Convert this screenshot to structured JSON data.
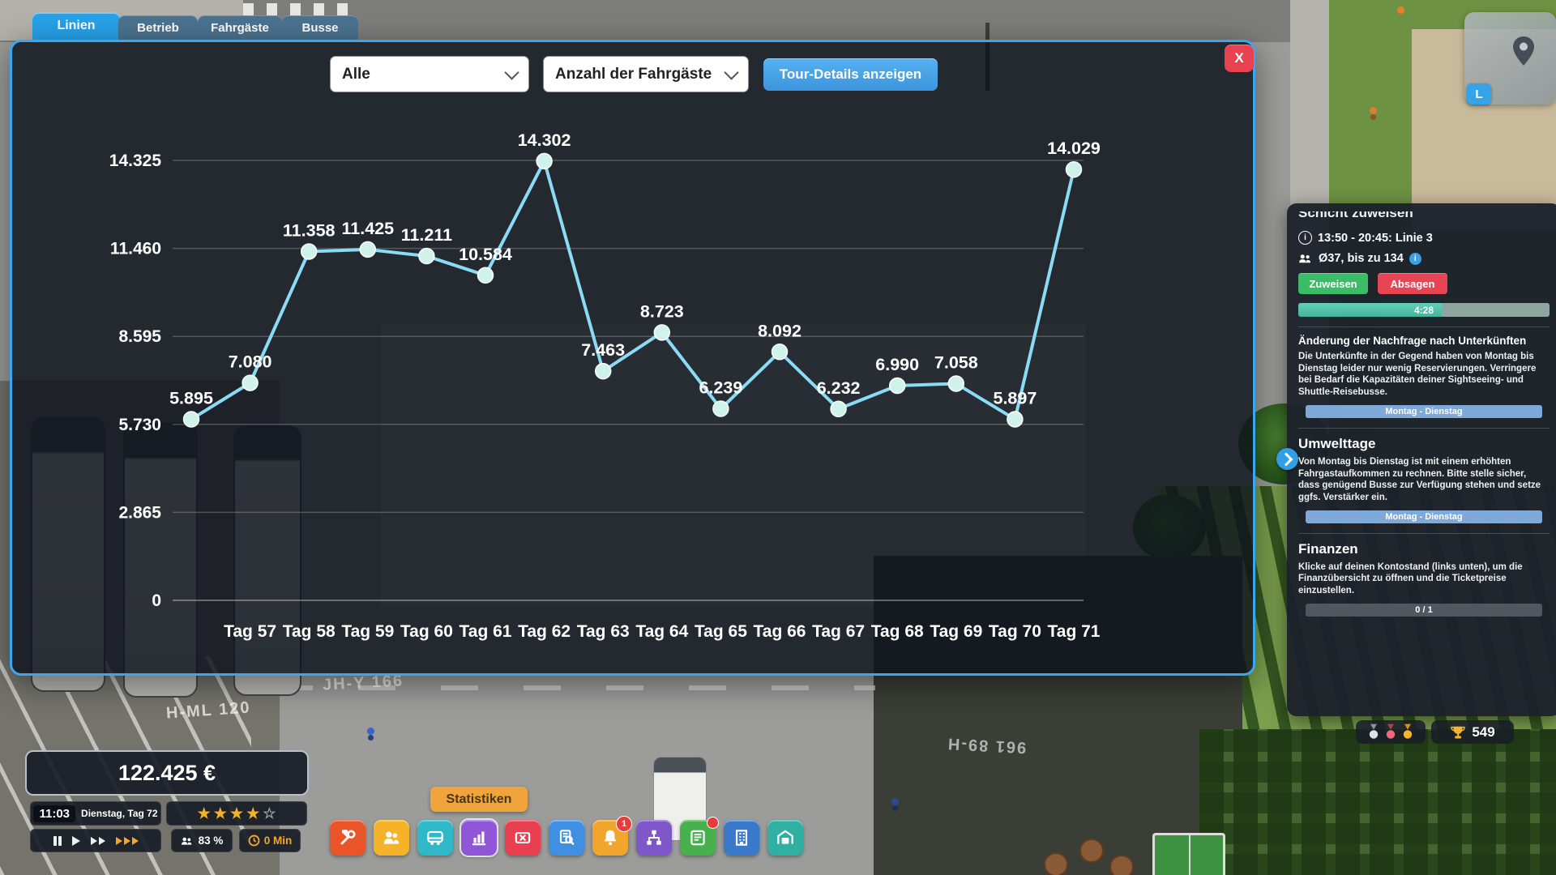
{
  "tabs": [
    {
      "label": "Linien",
      "active": true
    },
    {
      "label": "Betrieb",
      "active": false
    },
    {
      "label": "Fahrgäste",
      "active": false
    },
    {
      "label": "Busse",
      "active": false
    }
  ],
  "stats_panel": {
    "filter_value": "Alle",
    "metric_value": "Anzahl der Fahrgäste",
    "tour_details_label": "Tour-Details anzeigen",
    "close_label": "X"
  },
  "chart_data": {
    "type": "line",
    "title": "",
    "x_tick_labels": [
      "Tag 57",
      "Tag 58",
      "Tag 59",
      "Tag 60",
      "Tag 61",
      "Tag 62",
      "Tag 63",
      "Tag 64",
      "Tag 65",
      "Tag 66",
      "Tag 67",
      "Tag 68",
      "Tag 69",
      "Tag 70",
      "Tag 71"
    ],
    "values": [
      5895,
      7080,
      11358,
      11425,
      11211,
      10584,
      14302,
      7463,
      8723,
      6239,
      8092,
      6232,
      6990,
      7058,
      5897,
      14029
    ],
    "point_labels": [
      "5.895",
      "7.080",
      "11.358",
      "11.425",
      "11.211",
      "10.584",
      "14.302",
      "7.463",
      "8.723",
      "6.239",
      "8.092",
      "6.232",
      "6.990",
      "7.058",
      "5.897",
      "14.029"
    ],
    "first_point_unlabeled": true,
    "y_tick_labels": [
      "14.325",
      "11.460",
      "8.595",
      "5.730",
      "2.865",
      "0"
    ],
    "y_tick_values": [
      14325,
      11460,
      8595,
      5730,
      2865,
      0
    ],
    "ylim": [
      0,
      15600
    ],
    "grid": true,
    "legend": "none",
    "line_color": "#8adcf6",
    "point_color": "#cff3ea"
  },
  "side_panel": {
    "title": "Schicht zuweisen",
    "shift_time": "13:50 - 20:45: Linie 3",
    "shift_capacity": "Ø37, bis zu 134",
    "assign_label": "Zuweisen",
    "decline_label": "Absagen",
    "countdown": "4:28",
    "notices": [
      {
        "title": "Änderung der Nachfrage nach Unterkünften",
        "body": "Die Unterkünfte in der Gegend haben von Montag bis Dienstag leider nur wenig Reservierungen. Verringere bei Bedarf die Kapazitäten deiner Sightseeing- und Shuttle-Reisebusse.",
        "tag": "Montag - Dienstag"
      },
      {
        "title": "Umwelttage",
        "body": "Von Montag bis Dienstag ist mit einem erhöhten Fahrgastaufkommen zu rechnen. Bitte stelle sicher, dass genügend Busse zur Verfügung stehen und setze ggfs. Verstärker ein.",
        "tag": "Montag - Dienstag"
      },
      {
        "title": "Finanzen",
        "body": "Klicke auf deinen Kontostand (links unten), um die Finanzübersicht zu öffnen und die Ticketpreise einzustellen.",
        "tag": "0 / 1"
      }
    ]
  },
  "hud": {
    "money": "122.425 €",
    "clock": "11:03",
    "date": "Dienstag, Tag 72",
    "stars_filled": "★★★★",
    "star_empty": "☆",
    "occupancy": "83 %",
    "delay": "0 Min"
  },
  "toolbar": {
    "tooltip": "Statistiken",
    "bell_badge": "1",
    "items": [
      {
        "name": "maintenance-icon",
        "color": "#ea5429"
      },
      {
        "name": "staff-icon",
        "color": "#f4b32a"
      },
      {
        "name": "bus-fleet-icon",
        "color": "#2fb9c8"
      },
      {
        "name": "statistics-icon",
        "color": "#8f56d8"
      },
      {
        "name": "tickets-icon",
        "color": "#e84050"
      },
      {
        "name": "inspection-icon",
        "color": "#3f8fe2"
      },
      {
        "name": "notifications-icon",
        "color": "#f2a52c"
      },
      {
        "name": "route-network-icon",
        "color": "#7e57c8"
      },
      {
        "name": "finances-icon",
        "color": "#47b14e"
      },
      {
        "name": "city-buildings-icon",
        "color": "#3a78c9"
      },
      {
        "name": "depot-icon",
        "color": "#2fb0a2"
      }
    ]
  },
  "achievements": {
    "trophy_count": "549"
  },
  "minimap": {
    "shortcut_label": "L"
  },
  "scene": {
    "road_labels": [
      "H-ML 120",
      "JH-Y 166",
      "961 89-H"
    ]
  },
  "colors": {
    "accent_blue": "#3ba6ee",
    "green": "#3bbd68",
    "red": "#e84554",
    "orange": "#f5a623"
  }
}
